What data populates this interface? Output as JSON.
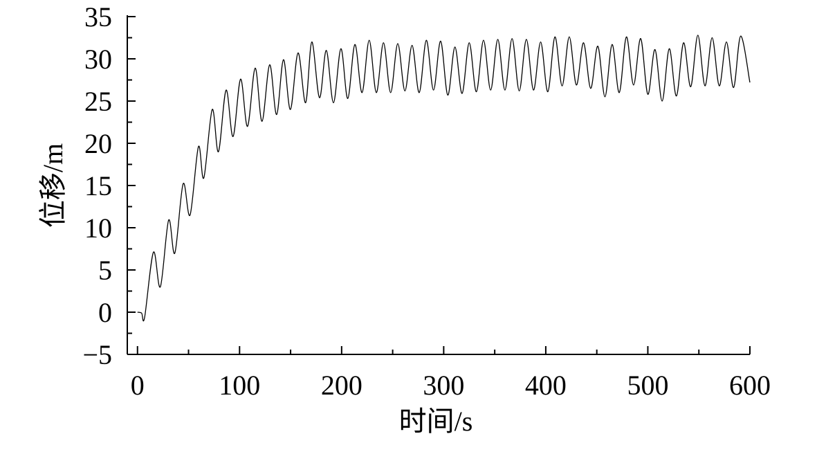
{
  "chart_data": {
    "type": "line",
    "xlabel": "时间/s",
    "ylabel": "位移/m",
    "x": [
      0,
      4,
      7,
      15.6,
      22.4,
      30.5,
      36.6,
      44.7,
      51.5,
      59.7,
      65,
      73.2,
      79.3,
      86.8,
      93.6,
      101,
      107.8,
      115.3,
      122,
      129.5,
      136.3,
      143,
      149.8,
      157.3,
      164.7,
      170.8,
      178.3,
      185,
      192,
      199.3,
      206,
      213,
      220,
      227,
      234,
      241,
      248,
      255,
      262,
      269,
      276,
      283,
      290,
      297,
      304,
      311,
      318,
      325,
      332,
      339,
      346,
      353,
      360,
      367,
      374,
      381,
      388,
      395,
      402,
      409,
      416,
      423,
      430,
      437,
      444,
      451,
      458,
      465,
      472,
      479,
      486,
      493,
      500,
      507,
      514,
      521,
      528,
      535,
      542,
      549,
      556,
      563,
      570,
      577,
      584,
      591,
      600
    ],
    "series": [
      {
        "color": "#000000",
        "values": [
          0,
          -0.1,
          -0.6,
          7.1,
          3.0,
          10.9,
          7.0,
          15.2,
          11.5,
          19.6,
          15.9,
          24.0,
          19.0,
          26.3,
          20.8,
          27.6,
          22.0,
          28.9,
          22.6,
          29.3,
          23.4,
          29.9,
          24.0,
          30.7,
          24.8,
          32.0,
          25.4,
          31.0,
          24.8,
          31.2,
          25.3,
          31.7,
          26.0,
          32.2,
          26.0,
          31.9,
          26.0,
          31.8,
          26.2,
          31.6,
          26.0,
          32.2,
          26.3,
          32.1,
          25.7,
          31.4,
          25.9,
          31.9,
          26.1,
          32.2,
          26.3,
          32.3,
          26.3,
          32.4,
          26.2,
          32.3,
          26.3,
          32.0,
          26.1,
          32.6,
          26.8,
          32.6,
          26.9,
          31.9,
          26.5,
          31.5,
          25.5,
          31.7,
          26.0,
          32.6,
          26.9,
          32.4,
          25.8,
          31.1,
          25.0,
          31.2,
          25.6,
          31.9,
          26.7,
          32.8,
          26.8,
          32.5,
          26.8,
          32.0,
          26.6,
          32.7,
          27.2
        ]
      }
    ],
    "xlim": [
      -10,
      600
    ],
    "ylim": [
      -5,
      35
    ],
    "xticks": [
      0,
      100,
      200,
      300,
      400,
      500,
      600
    ],
    "xminorticks": [
      50,
      150,
      250,
      350,
      450,
      550
    ],
    "yticks": [
      {
        "value": -5,
        "label": "−5"
      },
      0,
      5,
      10,
      15,
      20,
      25,
      30,
      35
    ],
    "yminorticks": [
      -2.5,
      2.5,
      7.5,
      12.5,
      17.5,
      22.5,
      27.5,
      32.5
    ]
  }
}
